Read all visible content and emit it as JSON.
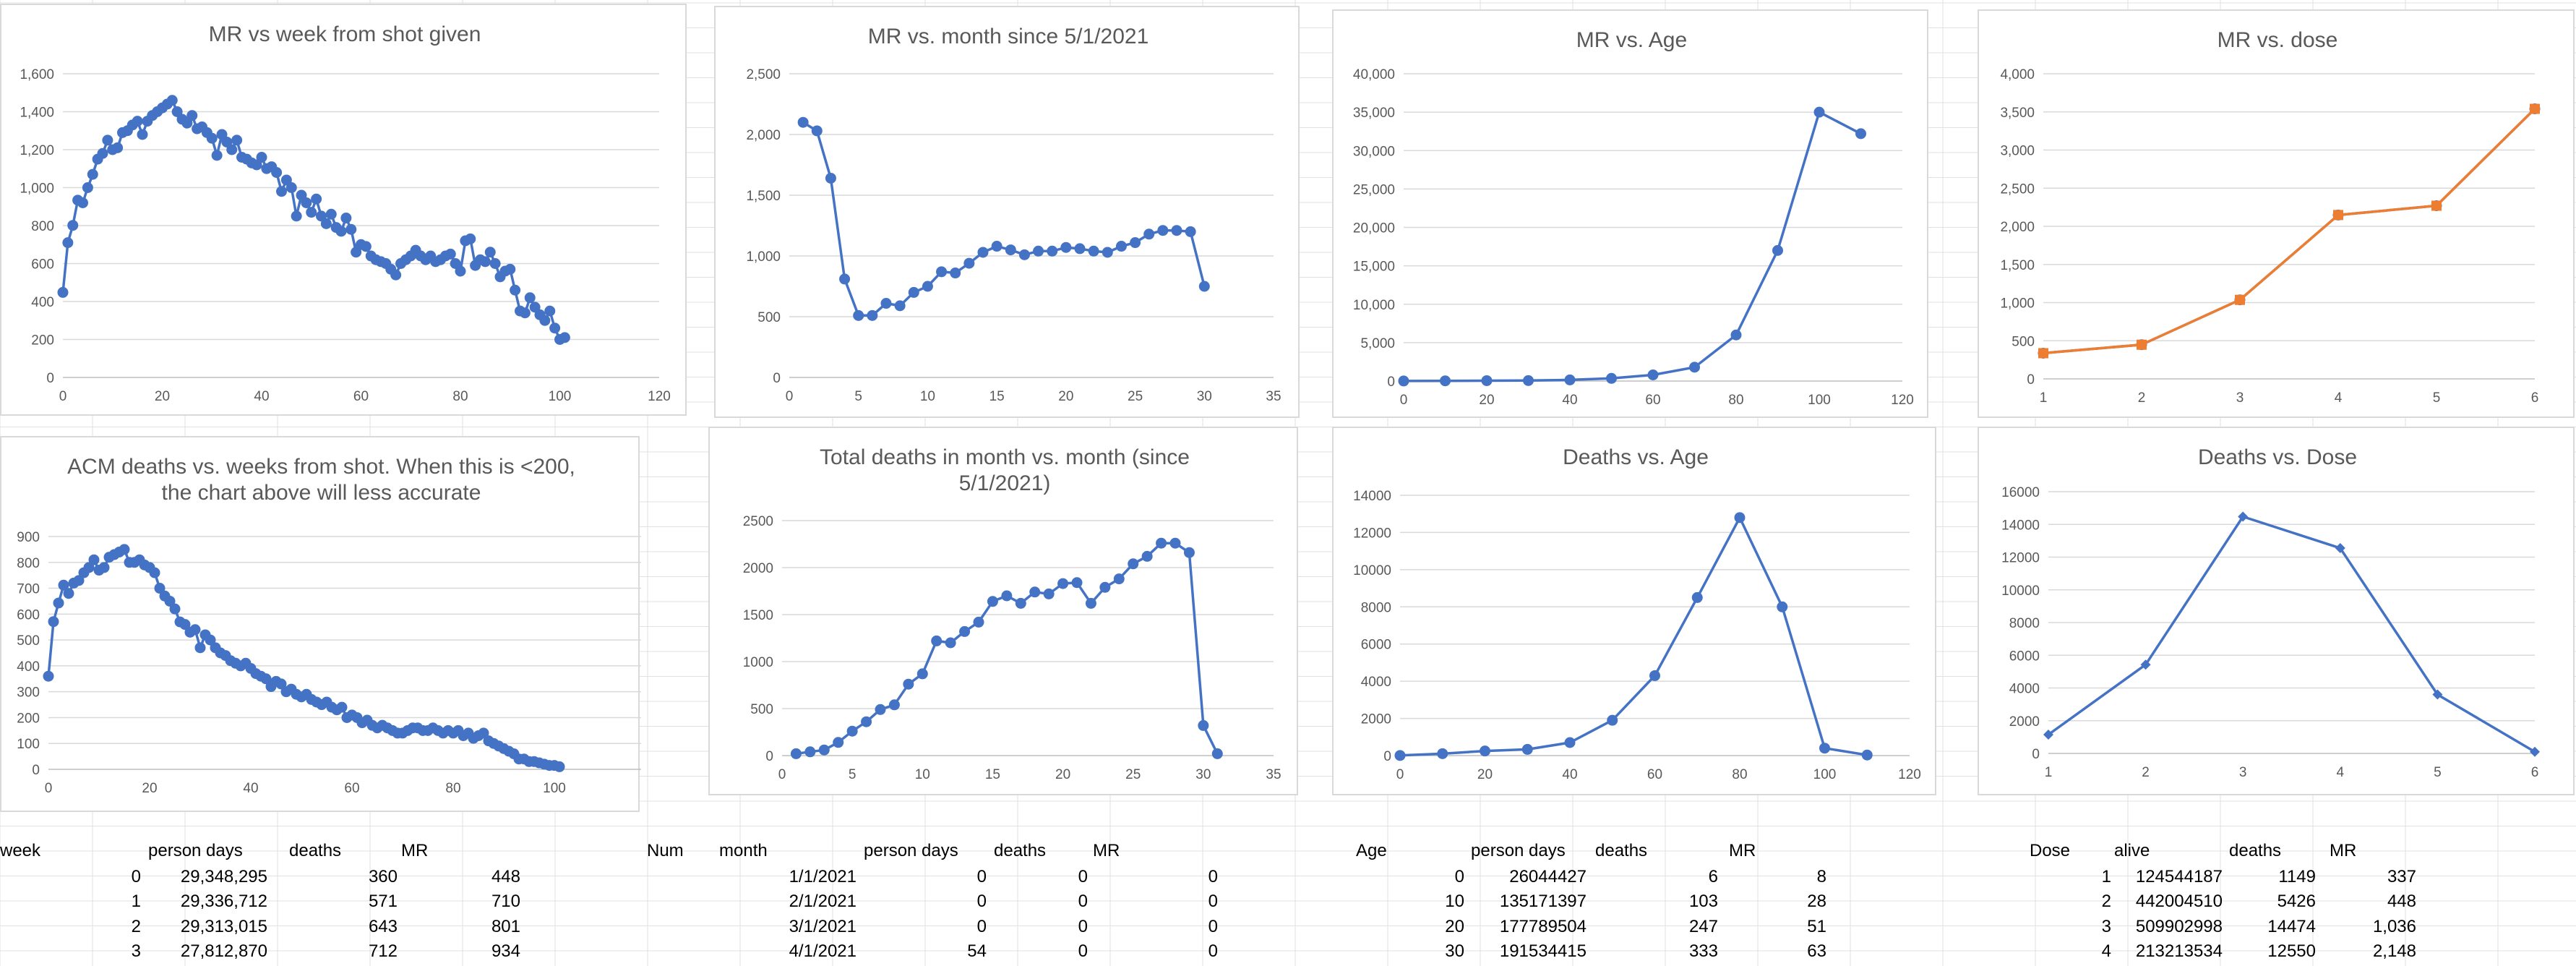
{
  "chart_data": [
    {
      "id": "mr-week",
      "type": "scatter",
      "title": [
        "MR vs week from shot given"
      ],
      "xlim": [
        0,
        120
      ],
      "xticks": [
        0,
        20,
        40,
        60,
        80,
        100,
        120
      ],
      "ylim": [
        0,
        1600
      ],
      "yticks": [
        0,
        200,
        400,
        600,
        800,
        1000,
        1200,
        1400,
        1600
      ],
      "tick_format": "comma",
      "x": [
        0,
        1,
        2,
        3,
        4,
        5,
        6,
        7,
        8,
        9,
        10,
        11,
        12,
        13,
        14,
        15,
        16,
        17,
        18,
        19,
        20,
        21,
        22,
        23,
        24,
        25,
        26,
        27,
        28,
        29,
        30,
        31,
        32,
        33,
        34,
        35,
        36,
        37,
        38,
        39,
        40,
        41,
        42,
        43,
        44,
        45,
        46,
        47,
        48,
        49,
        50,
        51,
        52,
        53,
        54,
        55,
        56,
        57,
        58,
        59,
        60,
        61,
        62,
        63,
        64,
        65,
        66,
        67,
        68,
        69,
        70,
        71,
        72,
        73,
        74,
        75,
        76,
        77,
        78,
        79,
        80,
        81,
        82,
        83,
        84,
        85,
        86,
        87,
        88,
        89,
        90,
        91,
        92,
        93,
        94,
        95,
        96,
        97,
        98,
        99,
        100,
        101
      ],
      "series": [
        {
          "color": "#4472c4",
          "marker": "circle",
          "values": [
            448,
            710,
            801,
            934,
            920,
            1000,
            1070,
            1150,
            1180,
            1250,
            1200,
            1210,
            1290,
            1300,
            1330,
            1350,
            1280,
            1350,
            1380,
            1400,
            1420,
            1440,
            1460,
            1400,
            1360,
            1340,
            1380,
            1310,
            1320,
            1290,
            1260,
            1170,
            1280,
            1240,
            1200,
            1250,
            1160,
            1150,
            1130,
            1120,
            1160,
            1100,
            1110,
            1080,
            980,
            1040,
            1000,
            850,
            960,
            920,
            870,
            940,
            850,
            810,
            860,
            790,
            770,
            840,
            780,
            660,
            700,
            690,
            640,
            620,
            610,
            600,
            570,
            540,
            600,
            620,
            640,
            670,
            640,
            620,
            640,
            610,
            620,
            640,
            650,
            600,
            560,
            720,
            730,
            590,
            620,
            610,
            660,
            600,
            530,
            560,
            570,
            460,
            350,
            340,
            420,
            370,
            330,
            300,
            350,
            260,
            200,
            210
          ]
        }
      ]
    },
    {
      "id": "mr-month",
      "type": "line",
      "title": [
        "MR vs. month since 5/1/2021"
      ],
      "xlim": [
        0,
        35
      ],
      "xticks": [
        0,
        5,
        10,
        15,
        20,
        25,
        30,
        35
      ],
      "ylim": [
        0,
        2500
      ],
      "yticks": [
        0,
        500,
        1000,
        1500,
        2000,
        2500
      ],
      "tick_format": "comma",
      "x": [
        1,
        2,
        3,
        4,
        5,
        6,
        7,
        8,
        9,
        10,
        11,
        12,
        13,
        14,
        15,
        16,
        17,
        18,
        19,
        20,
        21,
        22,
        23,
        24,
        25,
        26,
        27,
        28,
        29,
        30
      ],
      "series": [
        {
          "color": "#4472c4",
          "marker": "circle",
          "values": [
            2100,
            2030,
            1640,
            810,
            510,
            510,
            610,
            590,
            700,
            750,
            870,
            860,
            940,
            1030,
            1080,
            1050,
            1010,
            1040,
            1040,
            1070,
            1060,
            1040,
            1030,
            1080,
            1110,
            1180,
            1210,
            1210,
            1200,
            750
          ]
        }
      ]
    },
    {
      "id": "mr-age",
      "type": "line",
      "title": [
        "MR vs. Age"
      ],
      "xlim": [
        0,
        120
      ],
      "xticks": [
        0,
        20,
        40,
        60,
        80,
        100,
        120
      ],
      "ylim": [
        0,
        40000
      ],
      "yticks": [
        0,
        5000,
        10000,
        15000,
        20000,
        25000,
        30000,
        35000,
        40000
      ],
      "tick_format": "comma",
      "x": [
        0,
        10,
        20,
        30,
        40,
        50,
        60,
        70,
        80,
        90,
        100,
        110
      ],
      "series": [
        {
          "color": "#4472c4",
          "marker": "circle",
          "values": [
            8,
            28,
            51,
            63,
            150,
            350,
            800,
            1800,
            6000,
            17000,
            35000,
            32200
          ]
        }
      ]
    },
    {
      "id": "mr-dose",
      "type": "line",
      "title": [
        "MR vs. dose"
      ],
      "xlim": [
        1,
        6
      ],
      "xticks": [
        1,
        2,
        3,
        4,
        5,
        6
      ],
      "ylim": [
        0,
        4000
      ],
      "yticks": [
        0,
        500,
        1000,
        1500,
        2000,
        2500,
        3000,
        3500,
        4000
      ],
      "tick_format": "comma",
      "x": [
        1,
        2,
        3,
        4,
        5,
        6
      ],
      "series": [
        {
          "color": "#4472c4",
          "marker": "circle",
          "values": [
            337,
            448,
            1036,
            2148,
            2270,
            3540
          ]
        },
        {
          "color": "#ed7d31",
          "marker": "square",
          "values": [
            337,
            448,
            1036,
            2148,
            2270,
            3540
          ]
        }
      ]
    },
    {
      "id": "acm-deaths-week",
      "type": "scatter",
      "title": [
        "ACM deaths vs. weeks from shot. When this is <200,",
        "the chart above will less accurate"
      ],
      "xlim": [
        0,
        120
      ],
      "xticks": [
        0,
        20,
        40,
        60,
        80,
        100,
        120
      ],
      "ylim": [
        0,
        900
      ],
      "yticks": [
        0,
        100,
        200,
        300,
        400,
        500,
        600,
        700,
        800,
        900
      ],
      "tick_format": "plain",
      "x": [
        0,
        1,
        2,
        3,
        4,
        5,
        6,
        7,
        8,
        9,
        10,
        11,
        12,
        13,
        14,
        15,
        16,
        17,
        18,
        19,
        20,
        21,
        22,
        23,
        24,
        25,
        26,
        27,
        28,
        29,
        30,
        31,
        32,
        33,
        34,
        35,
        36,
        37,
        38,
        39,
        40,
        41,
        42,
        43,
        44,
        45,
        46,
        47,
        48,
        49,
        50,
        51,
        52,
        53,
        54,
        55,
        56,
        57,
        58,
        59,
        60,
        61,
        62,
        63,
        64,
        65,
        66,
        67,
        68,
        69,
        70,
        71,
        72,
        73,
        74,
        75,
        76,
        77,
        78,
        79,
        80,
        81,
        82,
        83,
        84,
        85,
        86,
        87,
        88,
        89,
        90,
        91,
        92,
        93,
        94,
        95,
        96,
        97,
        98,
        99,
        100,
        101
      ],
      "series": [
        {
          "color": "#4472c4",
          "marker": "circle",
          "values": [
            360,
            571,
            643,
            712,
            680,
            720,
            730,
            760,
            780,
            810,
            770,
            780,
            820,
            830,
            840,
            850,
            800,
            800,
            810,
            790,
            780,
            760,
            700,
            670,
            650,
            620,
            570,
            560,
            530,
            540,
            470,
            520,
            500,
            470,
            450,
            440,
            420,
            410,
            400,
            410,
            390,
            370,
            360,
            350,
            320,
            340,
            330,
            300,
            310,
            290,
            280,
            290,
            270,
            260,
            250,
            260,
            240,
            230,
            240,
            200,
            210,
            200,
            180,
            190,
            170,
            160,
            170,
            160,
            150,
            140,
            140,
            150,
            160,
            160,
            150,
            150,
            160,
            150,
            140,
            150,
            140,
            150,
            130,
            140,
            120,
            130,
            140,
            110,
            100,
            90,
            80,
            70,
            60,
            40,
            40,
            30,
            30,
            25,
            20,
            15,
            15,
            10
          ]
        }
      ]
    },
    {
      "id": "total-deaths-month",
      "type": "line",
      "title": [
        "Total deaths in month vs. month (since",
        "5/1/2021)"
      ],
      "xlim": [
        0,
        35
      ],
      "xticks": [
        0,
        5,
        10,
        15,
        20,
        25,
        30,
        35
      ],
      "ylim": [
        0,
        2500
      ],
      "yticks": [
        0,
        500,
        1000,
        1500,
        2000,
        2500
      ],
      "tick_format": "plain",
      "x": [
        1,
        2,
        3,
        4,
        5,
        6,
        7,
        8,
        9,
        10,
        11,
        12,
        13,
        14,
        15,
        16,
        17,
        18,
        19,
        20,
        21,
        22,
        23,
        24,
        25,
        26,
        27,
        28,
        29,
        30,
        31
      ],
      "series": [
        {
          "color": "#4472c4",
          "marker": "circle",
          "values": [
            20,
            40,
            60,
            140,
            260,
            360,
            490,
            540,
            760,
            870,
            1220,
            1200,
            1320,
            1420,
            1640,
            1700,
            1620,
            1740,
            1720,
            1830,
            1840,
            1620,
            1790,
            1880,
            2040,
            2120,
            2260,
            2260,
            2160,
            320,
            20
          ]
        }
      ]
    },
    {
      "id": "deaths-age",
      "type": "line",
      "title": [
        "Deaths vs. Age"
      ],
      "xlim": [
        0,
        120
      ],
      "xticks": [
        0,
        20,
        40,
        60,
        80,
        100,
        120
      ],
      "ylim": [
        0,
        14000
      ],
      "yticks": [
        0,
        2000,
        4000,
        6000,
        8000,
        10000,
        12000,
        14000
      ],
      "tick_format": "plain",
      "x": [
        0,
        10,
        20,
        30,
        40,
        50,
        60,
        70,
        80,
        90,
        100,
        110
      ],
      "series": [
        {
          "color": "#4472c4",
          "marker": "circle",
          "values": [
            6,
            103,
            247,
            333,
            700,
            1900,
            4300,
            8500,
            12800,
            8000,
            400,
            30
          ]
        }
      ]
    },
    {
      "id": "deaths-dose",
      "type": "line",
      "title": [
        "Deaths vs. Dose"
      ],
      "xlim": [
        1,
        6
      ],
      "xticks": [
        1,
        2,
        3,
        4,
        5,
        6
      ],
      "ylim": [
        0,
        16000
      ],
      "yticks": [
        0,
        2000,
        4000,
        6000,
        8000,
        10000,
        12000,
        14000,
        16000
      ],
      "tick_format": "plain",
      "x": [
        1,
        2,
        3,
        4,
        5,
        6
      ],
      "series": [
        {
          "color": "#4472c4",
          "marker": "diamond",
          "values": [
            1149,
            5426,
            14474,
            12550,
            3600,
            100
          ]
        }
      ]
    }
  ],
  "sheet": {
    "week_table": {
      "headers": [
        "week",
        "person days",
        "deaths",
        "MR"
      ],
      "rows": [
        [
          "0",
          "29,348,295",
          "360",
          "448"
        ],
        [
          "1",
          "29,336,712",
          "571",
          "710"
        ],
        [
          "2",
          "29,313,015",
          "643",
          "801"
        ],
        [
          "3",
          "27,812,870",
          "712",
          "934"
        ]
      ]
    },
    "month_table": {
      "headers": [
        "Num",
        "month",
        "person days",
        "deaths",
        "MR"
      ],
      "rows": [
        [
          "",
          "1/1/2021",
          "0",
          "0",
          "0"
        ],
        [
          "",
          "2/1/2021",
          "0",
          "0",
          "0"
        ],
        [
          "",
          "3/1/2021",
          "0",
          "0",
          "0"
        ],
        [
          "",
          "4/1/2021",
          "54",
          "0",
          "0"
        ]
      ]
    },
    "age_table": {
      "headers": [
        "Age",
        "person days",
        "deaths",
        "MR"
      ],
      "rows": [
        [
          "0",
          "26044427",
          "6",
          "8"
        ],
        [
          "10",
          "135171397",
          "103",
          "28"
        ],
        [
          "20",
          "177789504",
          "247",
          "51"
        ],
        [
          "30",
          "191534415",
          "333",
          "63"
        ]
      ]
    },
    "dose_table": {
      "headers": [
        "Dose",
        "alive",
        "deaths",
        "MR"
      ],
      "rows": [
        [
          "1",
          "124544187",
          "1149",
          "337"
        ],
        [
          "2",
          "442004510",
          "5426",
          "448"
        ],
        [
          "3",
          "509902998",
          "14474",
          "1,036"
        ],
        [
          "4",
          "213213534",
          "12550",
          "2,148"
        ]
      ]
    }
  }
}
